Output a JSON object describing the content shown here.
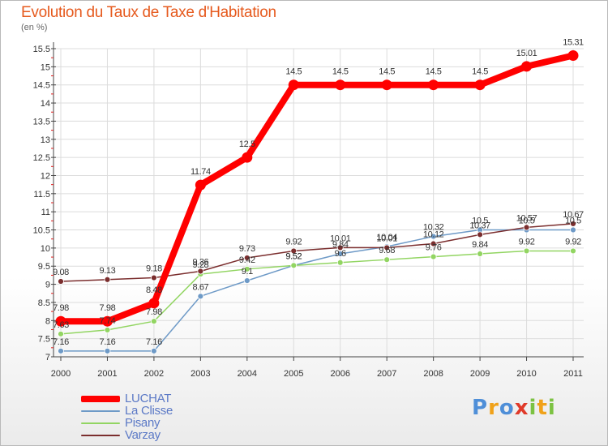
{
  "chart_data": {
    "type": "line",
    "title": "Evolution du Taux de Taxe d'Habitation",
    "ylabel": "(en %)",
    "xlabel": "",
    "x": [
      "2000",
      "2001",
      "2002",
      "2003",
      "2004",
      "2005",
      "2006",
      "2007",
      "2008",
      "2009",
      "2010",
      "2011"
    ],
    "y_ticks": [
      "7",
      "7.5",
      "8",
      "8.5",
      "9",
      "9.5",
      "10",
      "10.5",
      "11",
      "11.5",
      "12",
      "12.5",
      "13",
      "13.5",
      "14",
      "14.5",
      "15",
      "15.5"
    ],
    "ylim": [
      7,
      15.5
    ],
    "legend_position": "bottom-left",
    "series": [
      {
        "name": "LUCHAT",
        "color": "#ff0000",
        "values": [
          7.98,
          7.98,
          8.48,
          11.74,
          12.5,
          14.5,
          14.5,
          14.5,
          14.5,
          14.5,
          15.01,
          15.31
        ],
        "labels": [
          "7.98",
          "7.98",
          "8.48",
          "11.74",
          "12.5",
          "14.5",
          "14.5",
          "14.5",
          "14.5",
          "14.5",
          "15.01",
          "15.31"
        ]
      },
      {
        "name": "La Clisse",
        "color": "#6e9ac7",
        "values": [
          7.16,
          7.16,
          7.16,
          8.67,
          9.1,
          9.52,
          9.84,
          10.04,
          10.32,
          10.5,
          10.5,
          10.5
        ],
        "labels": [
          "7.16",
          "7.16",
          "7.16",
          "8.67",
          "9.1",
          "9.52",
          "9.84",
          "10.04",
          "10.32",
          "10.5",
          "10.5",
          "10.5"
        ]
      },
      {
        "name": "Pisany",
        "color": "#92d562",
        "values": [
          7.63,
          7.74,
          7.98,
          9.28,
          9.42,
          9.52,
          9.6,
          9.68,
          9.76,
          9.84,
          9.92,
          9.92
        ],
        "labels": [
          "7.63",
          "7.74",
          "7.98",
          "9.28",
          "9.42",
          "9.52",
          "9.6",
          "9.68",
          "9.76",
          "9.84",
          "9.92",
          "9.92"
        ]
      },
      {
        "name": "Varzay",
        "color": "#7b2e2e",
        "values": [
          9.08,
          9.13,
          9.18,
          9.36,
          9.73,
          9.92,
          10.01,
          10.01,
          10.12,
          10.37,
          10.57,
          10.67
        ],
        "labels": [
          "9.08",
          "9.13",
          "9.18",
          "9.36",
          "9.73",
          "9.92",
          "10.01",
          "10.01",
          "10.12",
          "10.37",
          "10.57",
          "10.67"
        ]
      }
    ]
  },
  "logo": {
    "letters": [
      {
        "ch": "P",
        "color": "#4f8fd8"
      },
      {
        "ch": "r",
        "color": "#f0a21a"
      },
      {
        "ch": "o",
        "color": "#4f8fd8"
      },
      {
        "ch": "x",
        "color": "#e03a2a"
      },
      {
        "ch": "i",
        "color": "#7cc242"
      },
      {
        "ch": "t",
        "color": "#f0a21a"
      },
      {
        "ch": "i",
        "color": "#7cc242"
      }
    ]
  }
}
